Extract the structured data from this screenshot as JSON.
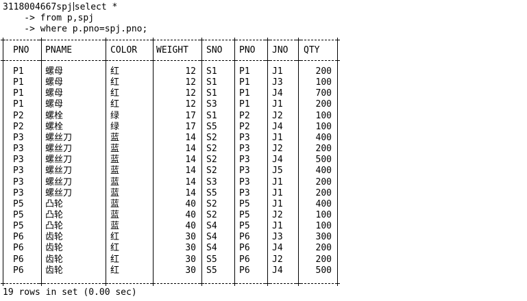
{
  "console": {
    "lines": [
      "3118004667spj",
      "select *",
      "    -> from p,spj",
      "    -> where p.pno=spj.pno;"
    ]
  },
  "table": {
    "columns": [
      "PNO",
      "PNAME",
      "COLOR",
      "WEIGHT",
      "SNO",
      "PNO",
      "JNO",
      "QTY"
    ],
    "rows": [
      [
        "P1",
        "螺母",
        "红",
        "12",
        "S1",
        "P1",
        "J1",
        "200"
      ],
      [
        "P1",
        "螺母",
        "红",
        "12",
        "S1",
        "P1",
        "J3",
        "100"
      ],
      [
        "P1",
        "螺母",
        "红",
        "12",
        "S1",
        "P1",
        "J4",
        "700"
      ],
      [
        "P1",
        "螺母",
        "红",
        "12",
        "S3",
        "P1",
        "J1",
        "200"
      ],
      [
        "P2",
        "螺栓",
        "绿",
        "17",
        "S1",
        "P2",
        "J2",
        "100"
      ],
      [
        "P2",
        "螺栓",
        "绿",
        "17",
        "S5",
        "P2",
        "J4",
        "100"
      ],
      [
        "P3",
        "螺丝刀",
        "蓝",
        "14",
        "S2",
        "P3",
        "J1",
        "400"
      ],
      [
        "P3",
        "螺丝刀",
        "蓝",
        "14",
        "S2",
        "P3",
        "J2",
        "200"
      ],
      [
        "P3",
        "螺丝刀",
        "蓝",
        "14",
        "S2",
        "P3",
        "J4",
        "500"
      ],
      [
        "P3",
        "螺丝刀",
        "蓝",
        "14",
        "S2",
        "P3",
        "J5",
        "400"
      ],
      [
        "P3",
        "螺丝刀",
        "蓝",
        "14",
        "S3",
        "P3",
        "J1",
        "200"
      ],
      [
        "P3",
        "螺丝刀",
        "蓝",
        "14",
        "S5",
        "P3",
        "J1",
        "200"
      ],
      [
        "P5",
        "凸轮",
        "蓝",
        "40",
        "S2",
        "P5",
        "J1",
        "400"
      ],
      [
        "P5",
        "凸轮",
        "蓝",
        "40",
        "S2",
        "P5",
        "J2",
        "100"
      ],
      [
        "P5",
        "凸轮",
        "蓝",
        "40",
        "S4",
        "P5",
        "J1",
        "100"
      ],
      [
        "P6",
        "齿轮",
        "红",
        "30",
        "S4",
        "P6",
        "J3",
        "300"
      ],
      [
        "P6",
        "齿轮",
        "红",
        "30",
        "S4",
        "P6",
        "J4",
        "200"
      ],
      [
        "P6",
        "齿轮",
        "红",
        "30",
        "S5",
        "P6",
        "J2",
        "200"
      ],
      [
        "P6",
        "齿轮",
        "红",
        "30",
        "S5",
        "P6",
        "J4",
        "500"
      ]
    ]
  },
  "status": {
    "result_summary": "19 rows in set (0.00 sec)"
  }
}
